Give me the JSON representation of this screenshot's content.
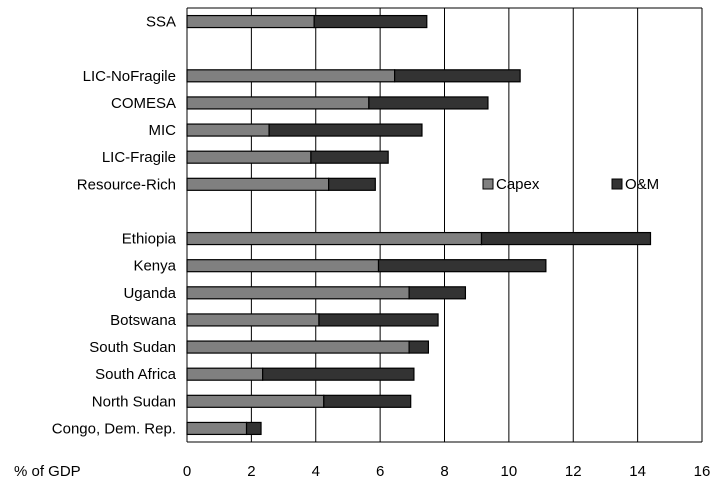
{
  "chart_data": {
    "type": "bar",
    "orientation": "horizontal",
    "stacked": true,
    "categories": [
      "SSA",
      "",
      "LIC-NoFragile",
      "COMESA",
      "MIC",
      "LIC-Fragile",
      "Resource-Rich",
      "",
      "Ethiopia",
      "Kenya",
      "Uganda",
      "Botswana",
      "South Sudan",
      "South Africa",
      "North Sudan",
      "Congo, Dem. Rep."
    ],
    "series": [
      {
        "name": "Capex",
        "color": "#808080",
        "values": [
          3.95,
          null,
          6.45,
          5.65,
          2.55,
          3.85,
          4.4,
          null,
          9.15,
          5.95,
          6.9,
          4.1,
          6.9,
          2.35,
          4.25,
          1.85
        ]
      },
      {
        "name": "O&M",
        "color": "#333333",
        "values": [
          3.5,
          null,
          3.9,
          3.7,
          4.75,
          2.4,
          1.45,
          null,
          5.25,
          5.2,
          1.75,
          3.7,
          0.6,
          4.7,
          2.7,
          0.45
        ]
      }
    ],
    "xlim": [
      0,
      16
    ],
    "xticks": [
      "0",
      "2",
      "4",
      "6",
      "8",
      "10",
      "12",
      "14",
      "16"
    ],
    "xlabel": "% of GDP",
    "grid": "vertical",
    "legend": "middle-right"
  }
}
